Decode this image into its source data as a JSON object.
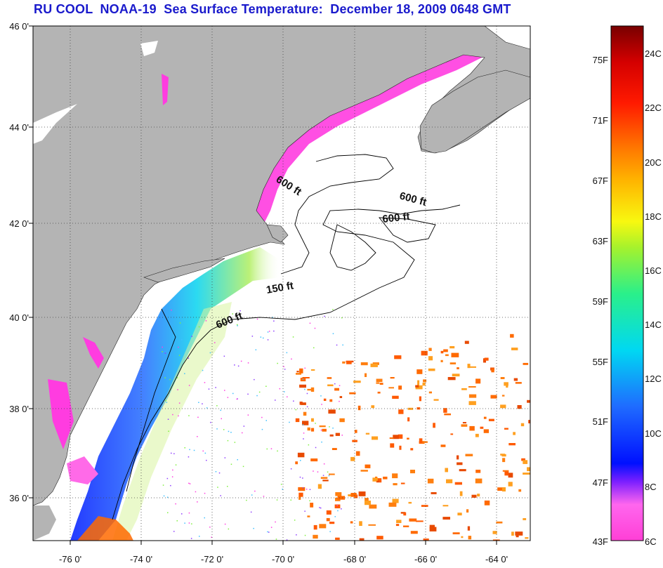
{
  "title": "RU COOL  NOAA-19  Sea Surface Temperature:  December 18, 2009 0648 GMT",
  "map": {
    "lat_ticks": [
      "46 0'",
      "44 0'",
      "42 0'",
      "40 0'",
      "38 0'",
      "36 0'"
    ],
    "lon_ticks": [
      "-76 0'",
      "-74 0'",
      "-72 0'",
      "-70 0'",
      "-68 0'",
      "-66 0'",
      "-64 0'"
    ],
    "contour_labels": [
      "600 ft",
      "600 ft",
      "600 ft",
      "150 ft",
      "600 ft"
    ],
    "colors": {
      "land": "#b4b4b4",
      "ocean_nodata": "#ffffff",
      "grid": "#444444"
    }
  },
  "colorbar": {
    "fahrenheit": [
      "75F",
      "71F",
      "67F",
      "63F",
      "59F",
      "55F",
      "51F",
      "47F",
      "43F"
    ],
    "celsius": [
      "24C",
      "22C",
      "20C",
      "18C",
      "16C",
      "14C",
      "12C",
      "10C",
      "8C",
      "6C"
    ]
  }
}
